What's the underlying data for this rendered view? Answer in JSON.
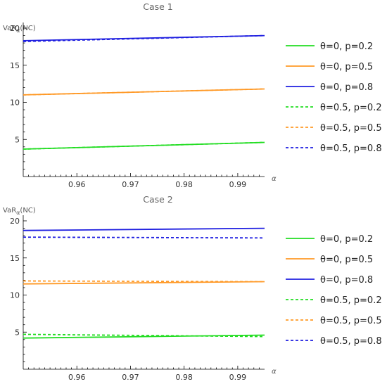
{
  "colors": {
    "green": "#22dd22",
    "orange": "#ff9926",
    "blue": "#1f1fe0"
  },
  "legend": {
    "items": [
      {
        "label": "θ=0, p=0.2",
        "color": "#22dd22",
        "dashed": false
      },
      {
        "label": "θ=0, p=0.5",
        "color": "#ff9926",
        "dashed": false
      },
      {
        "label": "θ=0, p=0.8",
        "color": "#1f1fe0",
        "dashed": false
      },
      {
        "label": "θ=0.5, p=0.2",
        "color": "#22dd22",
        "dashed": true
      },
      {
        "label": "θ=0.5, p=0.5",
        "color": "#ff9926",
        "dashed": true
      },
      {
        "label": "θ=0.5, p=0.8",
        "color": "#1f1fe0",
        "dashed": true
      }
    ]
  },
  "chart_data": [
    {
      "type": "line",
      "title": "Case 1",
      "xlabel": "α",
      "ylabel": "VaRα(NC)",
      "ylabel_main": "VaR",
      "ylabel_sub": "α",
      "ylabel_tail": "(NC)",
      "xlim": [
        0.95,
        0.995
      ],
      "ylim": [
        0,
        20
      ],
      "xticks": [
        0.96,
        0.97,
        0.98,
        0.99
      ],
      "xtick_labels": [
        "0.96",
        "0.97",
        "0.98",
        "0.99"
      ],
      "yticks": [
        5,
        10,
        15,
        20
      ],
      "ytick_labels": [
        "5",
        "10",
        "15",
        "20"
      ],
      "x": [
        0.95,
        0.995
      ],
      "series": [
        {
          "name": "θ=0, p=0.2",
          "color": "#22dd22",
          "dashed": false,
          "values": [
            3.7,
            4.6
          ]
        },
        {
          "name": "θ=0, p=0.5",
          "color": "#ff9926",
          "dashed": false,
          "values": [
            11.0,
            11.8
          ]
        },
        {
          "name": "θ=0, p=0.8",
          "color": "#1f1fe0",
          "dashed": false,
          "values": [
            18.3,
            19.0
          ]
        },
        {
          "name": "θ=0.5, p=0.2",
          "color": "#22dd22",
          "dashed": true,
          "values": [
            3.7,
            4.6
          ]
        },
        {
          "name": "θ=0.5, p=0.5",
          "color": "#ff9926",
          "dashed": true,
          "values": [
            11.0,
            11.8
          ]
        },
        {
          "name": "θ=0.5, p=0.8",
          "color": "#1f1fe0",
          "dashed": true,
          "values": [
            18.2,
            19.0
          ]
        }
      ]
    },
    {
      "type": "line",
      "title": "Case 2",
      "xlabel": "α",
      "ylabel": "VaRα(NC)",
      "ylabel_main": "VaR",
      "ylabel_sub": "α",
      "ylabel_tail": "(NC)",
      "xlim": [
        0.95,
        0.995
      ],
      "ylim": [
        0,
        20
      ],
      "xticks": [
        0.96,
        0.97,
        0.98,
        0.99
      ],
      "xtick_labels": [
        "0.96",
        "0.97",
        "0.98",
        "0.99"
      ],
      "yticks": [
        5,
        10,
        15,
        20
      ],
      "ytick_labels": [
        "5",
        "10",
        "15",
        "20"
      ],
      "x": [
        0.95,
        0.995
      ],
      "series": [
        {
          "name": "θ=0, p=0.2",
          "color": "#22dd22",
          "dashed": false,
          "values": [
            4.2,
            4.6
          ]
        },
        {
          "name": "θ=0, p=0.5",
          "color": "#ff9926",
          "dashed": false,
          "values": [
            11.5,
            11.8
          ]
        },
        {
          "name": "θ=0, p=0.8",
          "color": "#1f1fe0",
          "dashed": false,
          "values": [
            18.7,
            19.0
          ]
        },
        {
          "name": "θ=0.5, p=0.2",
          "color": "#22dd22",
          "dashed": true,
          "values": [
            4.7,
            4.4
          ]
        },
        {
          "name": "θ=0.5, p=0.5",
          "color": "#ff9926",
          "dashed": true,
          "values": [
            11.9,
            11.8
          ]
        },
        {
          "name": "θ=0.5, p=0.8",
          "color": "#1f1fe0",
          "dashed": true,
          "values": [
            17.8,
            17.7
          ]
        }
      ]
    }
  ]
}
